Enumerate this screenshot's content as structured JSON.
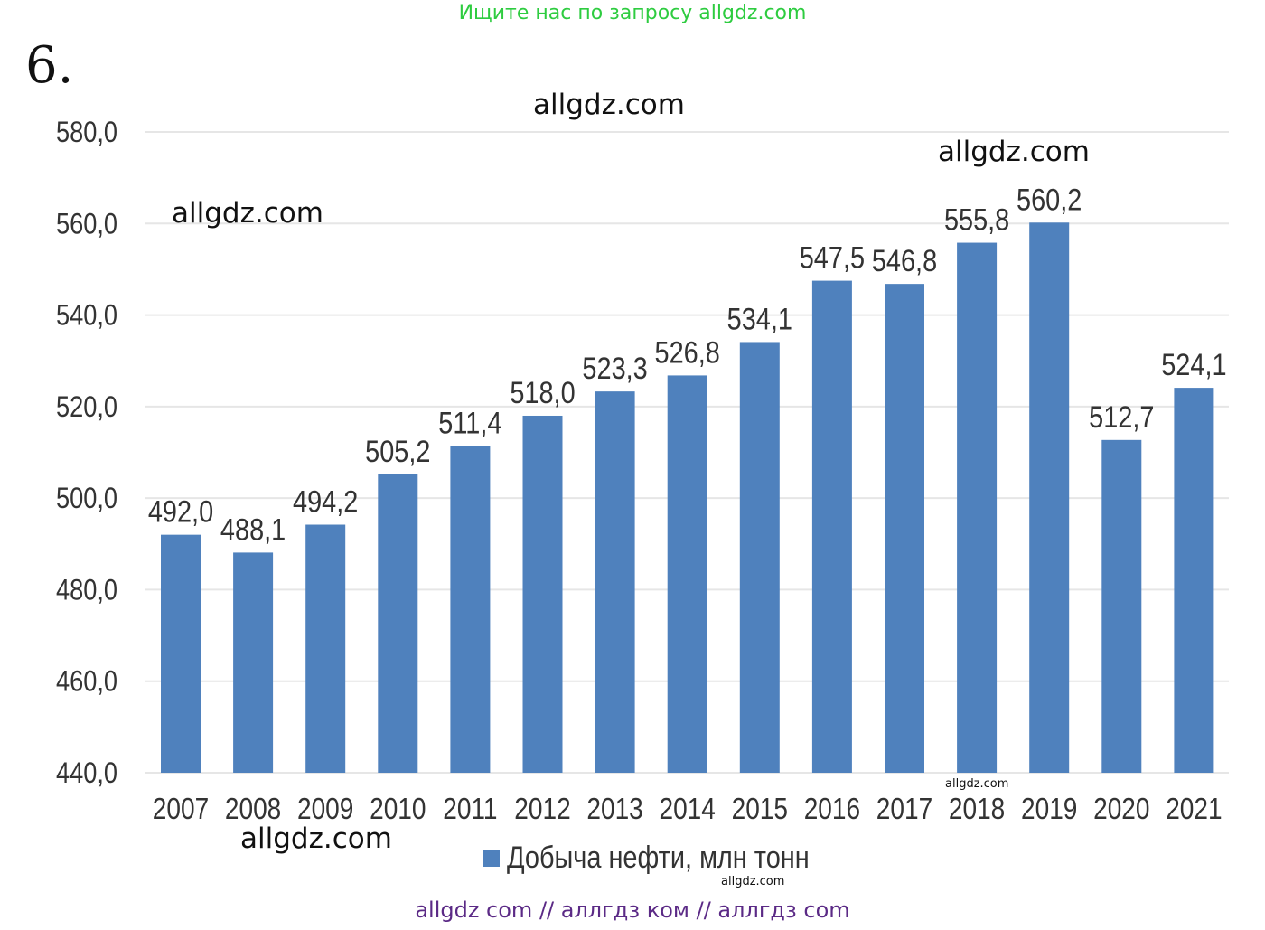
{
  "header": {
    "banner": "Ищите нас по запросу allgdz.com",
    "task_number": "6."
  },
  "watermarks": {
    "wm1": "allgdz.com",
    "wm2": "allgdz.com",
    "wm3": "allgdz.com",
    "wm4": "allgdz.com",
    "wm5": "allgdz.com",
    "wm6": "allgdz.com"
  },
  "footer": {
    "banner": "allgdz com  //  аллгдз ком  //  аллгдз com"
  },
  "colors": {
    "bar": "#4f81bd",
    "grid": "#e6e6e6",
    "text": "#333333"
  },
  "chart_data": {
    "type": "bar",
    "categories": [
      "2007",
      "2008",
      "2009",
      "2010",
      "2011",
      "2012",
      "2013",
      "2014",
      "2015",
      "2016",
      "2017",
      "2018",
      "2019",
      "2020",
      "2021"
    ],
    "series": [
      {
        "name": "Добыча нефти, млн тонн",
        "values": [
          492.0,
          488.1,
          494.2,
          505.2,
          511.4,
          518.0,
          523.3,
          526.8,
          534.1,
          547.5,
          546.8,
          555.8,
          560.2,
          512.7,
          524.1
        ],
        "labels": [
          "492,0",
          "488,1",
          "494,2",
          "505,2",
          "511,4",
          "518,0",
          "523,3",
          "526,8",
          "534,1",
          "547,5",
          "546,8",
          "555,8",
          "560,2",
          "512,7",
          "524,1"
        ]
      }
    ],
    "yticks": [
      "440,0",
      "460,0",
      "480,0",
      "500,0",
      "520,0",
      "540,0",
      "560,0",
      "580,0"
    ],
    "ylim": [
      440,
      580
    ],
    "grid": true,
    "legend_position": "bottom"
  }
}
